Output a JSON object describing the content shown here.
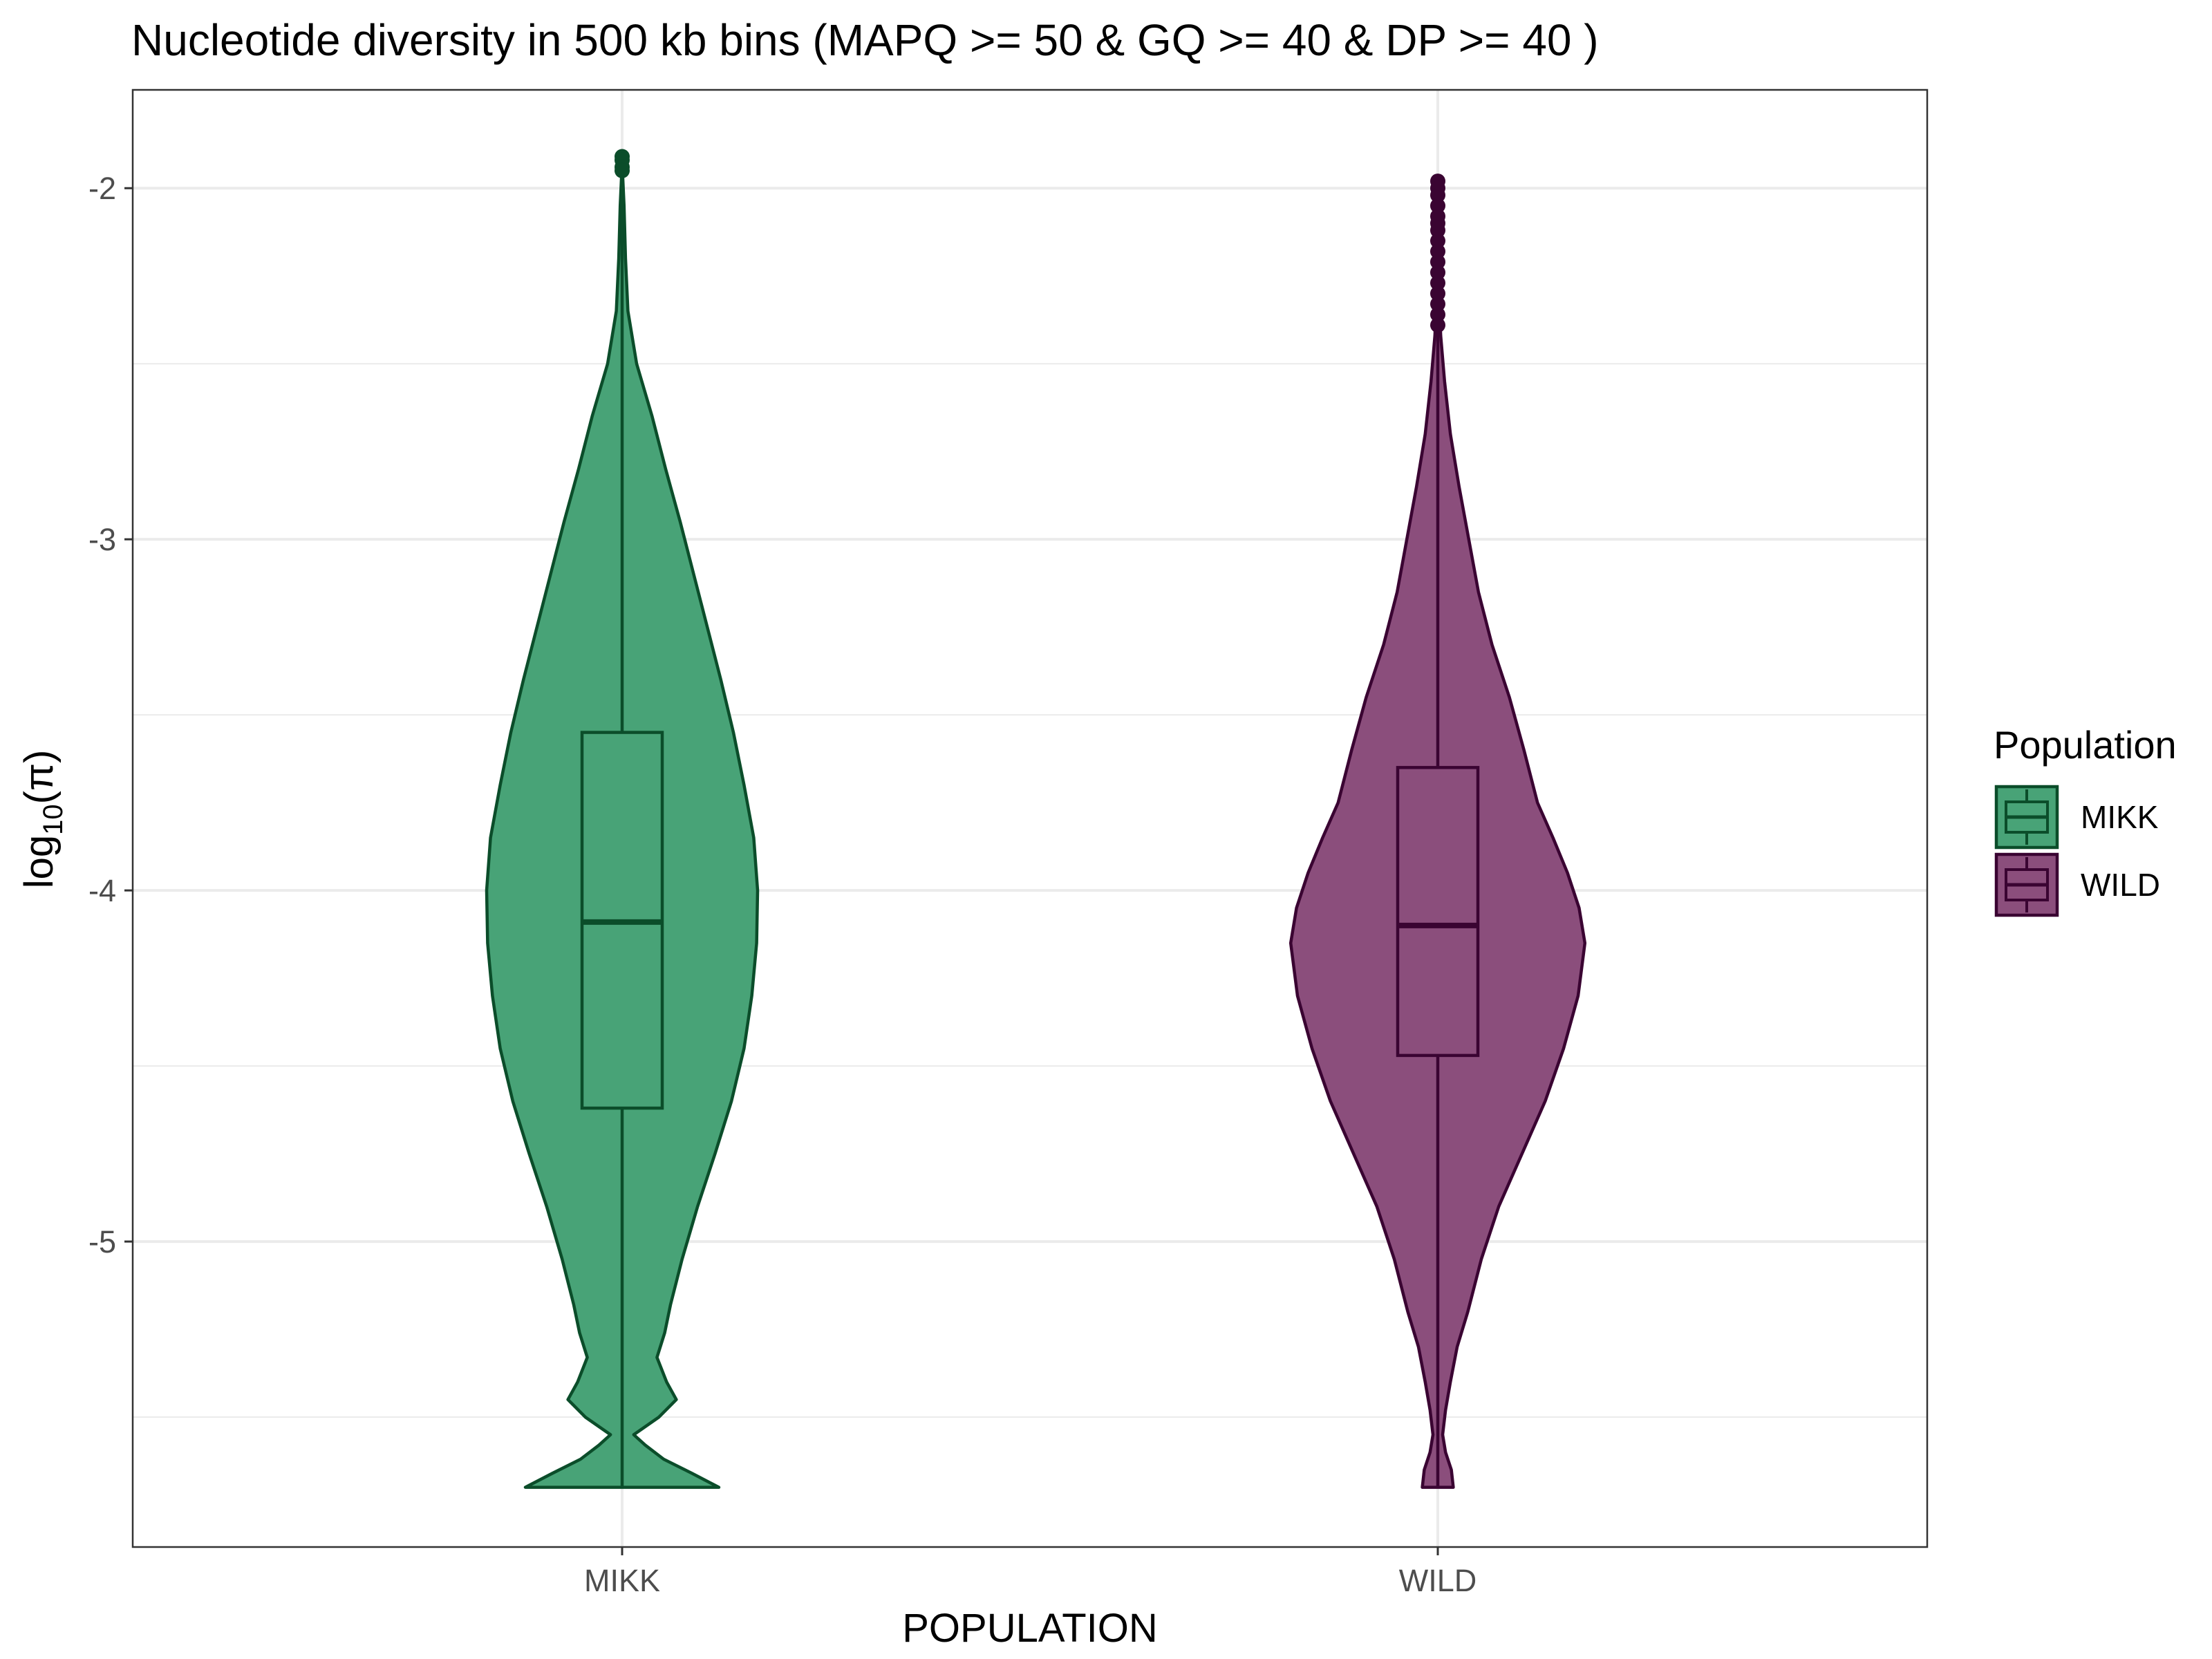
{
  "chart_data": {
    "type": "violin",
    "title": "Nucleotide diversity in 500 kb bins (MAPQ >= 50 & GQ >= 40 & DP >= 40 )",
    "xlabel": "POPULATION",
    "ylabel": {
      "base": "log",
      "subscript": "10",
      "suffix": "(π)"
    },
    "ylim": [
      -5.87,
      -1.72
    ],
    "y_ticks": [
      -2,
      -3,
      -4,
      -5
    ],
    "y_tick_labels": [
      "-2",
      "-3",
      "-4",
      "-5"
    ],
    "grid": true,
    "legend": {
      "title": "Population",
      "position": "right",
      "entries": [
        "MIKK",
        "WILD"
      ]
    },
    "categories": [
      "MIKK",
      "WILD"
    ],
    "series": [
      {
        "name": "MIKK",
        "fill": "#48a377",
        "stroke": "#0b4d2a",
        "box": {
          "q1": -4.62,
          "median": -4.09,
          "q3": -3.55,
          "whisker_low": -5.7,
          "whisker_high": -1.97
        },
        "outliers": [
          -1.91,
          -1.92,
          -1.94,
          -1.95
        ],
        "density": [
          [
            -5.7,
            1.0
          ],
          [
            -5.66,
            0.72
          ],
          [
            -5.62,
            0.43
          ],
          [
            -5.58,
            0.24
          ],
          [
            -5.55,
            0.12
          ],
          [
            -5.5,
            0.38
          ],
          [
            -5.45,
            0.56
          ],
          [
            -5.4,
            0.46
          ],
          [
            -5.33,
            0.36
          ],
          [
            -5.26,
            0.44
          ],
          [
            -5.18,
            0.5
          ],
          [
            -5.05,
            0.62
          ],
          [
            -4.9,
            0.78
          ],
          [
            -4.75,
            0.96
          ],
          [
            -4.6,
            1.13
          ],
          [
            -4.45,
            1.26
          ],
          [
            -4.3,
            1.34
          ],
          [
            -4.15,
            1.39
          ],
          [
            -4.0,
            1.4
          ],
          [
            -3.85,
            1.36
          ],
          [
            -3.7,
            1.26
          ],
          [
            -3.55,
            1.15
          ],
          [
            -3.4,
            1.02
          ],
          [
            -3.25,
            0.88
          ],
          [
            -3.1,
            0.74
          ],
          [
            -2.95,
            0.6
          ],
          [
            -2.8,
            0.45
          ],
          [
            -2.65,
            0.31
          ],
          [
            -2.5,
            0.15
          ],
          [
            -2.35,
            0.06
          ],
          [
            -2.2,
            0.035
          ],
          [
            -2.05,
            0.02
          ],
          [
            -1.93,
            0.0
          ]
        ]
      },
      {
        "name": "WILD",
        "fill": "#8b4e7c",
        "stroke": "#3a0432",
        "box": {
          "q1": -4.47,
          "median": -4.1,
          "q3": -3.65,
          "whisker_low": -5.7,
          "whisker_high": -2.41
        },
        "outliers": [
          -1.98,
          -2.0,
          -2.02,
          -2.05,
          -2.08,
          -2.1,
          -2.12,
          -2.15,
          -2.18,
          -2.21,
          -2.24,
          -2.27,
          -2.3,
          -2.33,
          -2.36,
          -2.39
        ],
        "density": [
          [
            -5.7,
            0.16
          ],
          [
            -5.65,
            0.14
          ],
          [
            -5.6,
            0.08
          ],
          [
            -5.55,
            0.05
          ],
          [
            -5.48,
            0.08
          ],
          [
            -5.4,
            0.13
          ],
          [
            -5.3,
            0.2
          ],
          [
            -5.2,
            0.31
          ],
          [
            -5.05,
            0.45
          ],
          [
            -4.9,
            0.63
          ],
          [
            -4.75,
            0.87
          ],
          [
            -4.6,
            1.11
          ],
          [
            -4.45,
            1.3
          ],
          [
            -4.3,
            1.45
          ],
          [
            -4.15,
            1.52
          ],
          [
            -4.05,
            1.46
          ],
          [
            -3.95,
            1.34
          ],
          [
            -3.85,
            1.19
          ],
          [
            -3.75,
            1.03
          ],
          [
            -3.6,
            0.89
          ],
          [
            -3.45,
            0.74
          ],
          [
            -3.3,
            0.56
          ],
          [
            -3.15,
            0.42
          ],
          [
            -3.0,
            0.32
          ],
          [
            -2.85,
            0.22
          ],
          [
            -2.7,
            0.13
          ],
          [
            -2.55,
            0.07
          ],
          [
            -2.42,
            0.03
          ],
          [
            -2.3,
            0.012
          ],
          [
            -2.1,
            0.005
          ],
          [
            -1.98,
            0.0
          ]
        ]
      }
    ]
  }
}
